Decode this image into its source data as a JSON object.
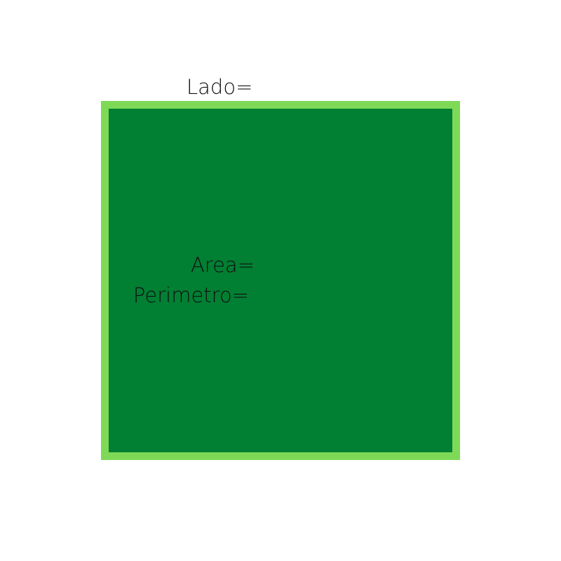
{
  "labels": {
    "side": "Lado=",
    "area": "Area=",
    "perimeter": "Perimetro="
  },
  "colors": {
    "square_fill": "#017f33",
    "square_border": "#7ed957",
    "text": "#111111",
    "background": "#ffffff"
  }
}
